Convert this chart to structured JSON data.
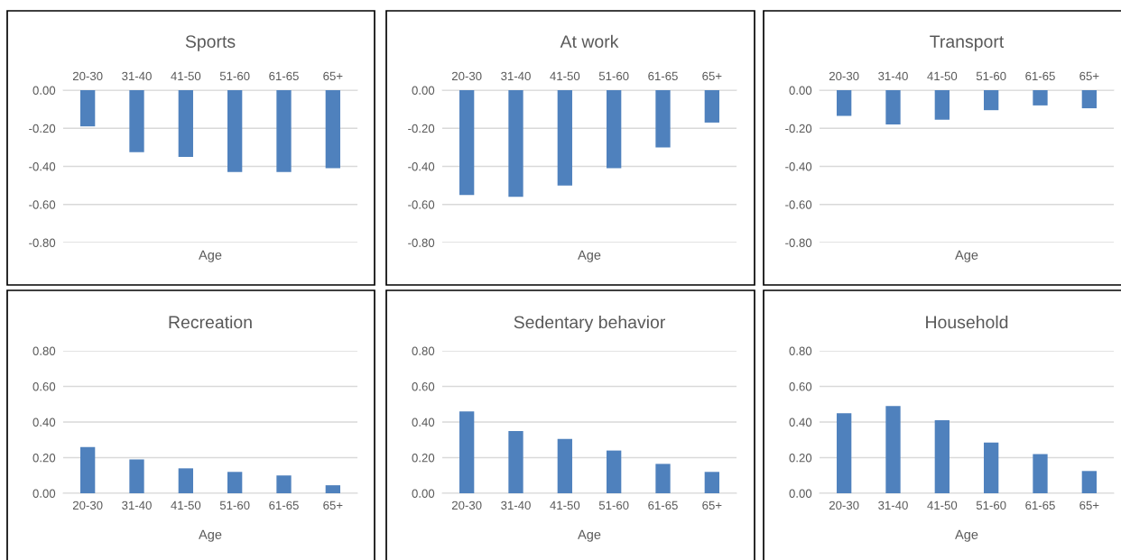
{
  "chart_data": [
    {
      "type": "bar",
      "title": "Sports",
      "xlabel": "Age",
      "categories": [
        "20-30",
        "31-40",
        "41-50",
        "51-60",
        "61-65",
        "65+"
      ],
      "values": [
        -0.19,
        -0.325,
        -0.35,
        -0.43,
        -0.43,
        -0.41
      ],
      "color": "#4f81bd",
      "ylim": [
        -0.8,
        0
      ],
      "yticks": [
        {
          "value": -0.8,
          "label": "-0.80"
        },
        {
          "value": -0.6,
          "label": "-0.60"
        },
        {
          "value": -0.4,
          "label": "-0.40"
        },
        {
          "value": -0.2,
          "label": "-0.20"
        },
        {
          "value": 0,
          "label": "0.00"
        }
      ],
      "grid": "y"
    },
    {
      "type": "bar",
      "title": "At work",
      "xlabel": "Age",
      "categories": [
        "20-30",
        "31-40",
        "41-50",
        "51-60",
        "61-65",
        "65+"
      ],
      "values": [
        -0.55,
        -0.56,
        -0.5,
        -0.41,
        -0.3,
        -0.17
      ],
      "color": "#4f81bd",
      "ylim": [
        -0.8,
        0
      ],
      "yticks": [
        {
          "value": -0.8,
          "label": "-0.80"
        },
        {
          "value": -0.6,
          "label": "-0.60"
        },
        {
          "value": -0.4,
          "label": "-0.40"
        },
        {
          "value": -0.2,
          "label": "-0.20"
        },
        {
          "value": 0,
          "label": "0.00"
        }
      ],
      "grid": "y"
    },
    {
      "type": "bar",
      "title": "Transport",
      "xlabel": "Age",
      "categories": [
        "20-30",
        "31-40",
        "41-50",
        "51-60",
        "61-65",
        "65+"
      ],
      "values": [
        -0.135,
        -0.18,
        -0.155,
        -0.105,
        -0.08,
        -0.095
      ],
      "color": "#4f81bd",
      "ylim": [
        -0.8,
        0
      ],
      "yticks": [
        {
          "value": -0.8,
          "label": "-0.80"
        },
        {
          "value": -0.6,
          "label": "-0.60"
        },
        {
          "value": -0.4,
          "label": "-0.40"
        },
        {
          "value": -0.2,
          "label": "-0.20"
        },
        {
          "value": 0,
          "label": "0.00"
        }
      ],
      "grid": "y"
    },
    {
      "type": "bar",
      "title": "Recreation",
      "xlabel": "Age",
      "categories": [
        "20-30",
        "31-40",
        "41-50",
        "51-60",
        "61-65",
        "65+"
      ],
      "values": [
        0.26,
        0.19,
        0.14,
        0.12,
        0.1,
        0.045
      ],
      "color": "#4f81bd",
      "ylim": [
        0,
        0.8
      ],
      "yticks": [
        {
          "value": 0,
          "label": "0.00"
        },
        {
          "value": 0.2,
          "label": "0.20"
        },
        {
          "value": 0.4,
          "label": "0.40"
        },
        {
          "value": 0.6,
          "label": "0.60"
        },
        {
          "value": 0.8,
          "label": "0.80"
        }
      ],
      "grid": "y"
    },
    {
      "type": "bar",
      "title": "Sedentary behavior",
      "xlabel": "Age",
      "categories": [
        "20-30",
        "31-40",
        "41-50",
        "51-60",
        "61-65",
        "65+"
      ],
      "values": [
        0.46,
        0.35,
        0.305,
        0.24,
        0.165,
        0.12
      ],
      "color": "#4f81bd",
      "ylim": [
        0,
        0.8
      ],
      "yticks": [
        {
          "value": 0,
          "label": "0.00"
        },
        {
          "value": 0.2,
          "label": "0.20"
        },
        {
          "value": 0.4,
          "label": "0.40"
        },
        {
          "value": 0.6,
          "label": "0.60"
        },
        {
          "value": 0.8,
          "label": "0.80"
        }
      ],
      "grid": "y"
    },
    {
      "type": "bar",
      "title": "Household",
      "xlabel": "Age",
      "categories": [
        "20-30",
        "31-40",
        "41-50",
        "51-60",
        "61-65",
        "65+"
      ],
      "values": [
        0.45,
        0.49,
        0.41,
        0.285,
        0.22,
        0.125
      ],
      "color": "#4f81bd",
      "ylim": [
        0,
        0.8
      ],
      "yticks": [
        {
          "value": 0,
          "label": "0.00"
        },
        {
          "value": 0.2,
          "label": "0.20"
        },
        {
          "value": 0.4,
          "label": "0.40"
        },
        {
          "value": 0.6,
          "label": "0.60"
        },
        {
          "value": 0.8,
          "label": "0.80"
        }
      ],
      "grid": "y"
    }
  ]
}
